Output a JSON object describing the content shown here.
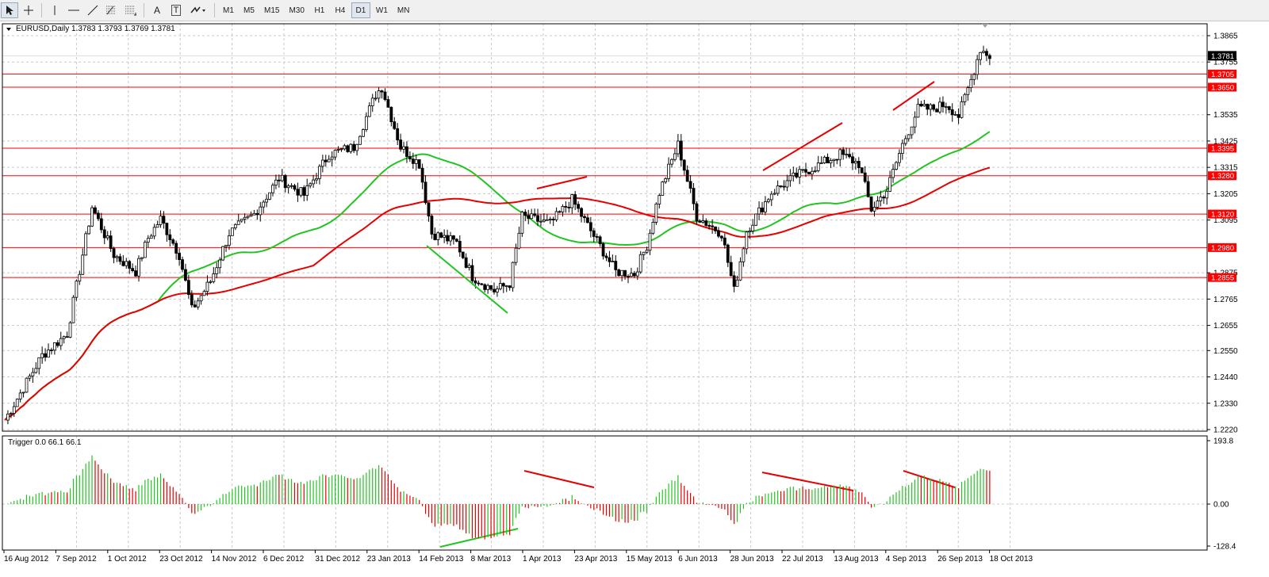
{
  "toolbar": {
    "tools": [
      {
        "name": "cursor-tool-icon",
        "active": true
      },
      {
        "name": "crosshair-tool-icon",
        "active": false
      },
      {
        "name": "vertical-line-tool-icon",
        "active": false
      },
      {
        "name": "horizontal-line-tool-icon",
        "active": false
      },
      {
        "name": "trendline-tool-icon",
        "active": false
      },
      {
        "name": "fibonacci-tool-icon",
        "active": false
      },
      {
        "name": "fibonacci-fan-tool-icon",
        "active": false
      },
      {
        "name": "text-tool-icon",
        "label": "A"
      },
      {
        "name": "text-label-tool-icon",
        "label": "T"
      },
      {
        "name": "arrows-tool-icon",
        "active": false
      }
    ],
    "timeframes": [
      "M1",
      "M5",
      "M15",
      "M30",
      "H1",
      "H4",
      "D1",
      "W1",
      "MN"
    ],
    "active_timeframe": "D1"
  },
  "main_chart": {
    "title": "EURUSD,Daily  1.3783 1.3793 1.3769 1.3781",
    "price_ticks": [
      "1.3865",
      "1.3755",
      "1.3535",
      "1.3425",
      "1.3315",
      "1.3205",
      "1.3095",
      "1.2875",
      "1.2765",
      "1.2655",
      "1.2550",
      "1.2440",
      "1.2330",
      "1.2220"
    ],
    "current_price": "1.3781",
    "levels": [
      "1.3705",
      "1.3650",
      "1.3395",
      "1.3280",
      "1.3120",
      "1.2980",
      "1.2855"
    ],
    "colors": {
      "level": "#ff0000",
      "ma_fast": "#22c422",
      "ma_slow": "#e60000",
      "bull": "#ffffff",
      "bear": "#000000"
    }
  },
  "indicator": {
    "title": "Trigger 0.0 66.1 66.1",
    "ticks": [
      "193.8",
      "0.00",
      "-128.4"
    ],
    "colors": {
      "positive": "#22c422",
      "negative": "#e60000"
    }
  },
  "time_axis": [
    "16 Aug 2012",
    "7 Sep 2012",
    "1 Oct 2012",
    "23 Oct 2012",
    "14 Nov 2012",
    "6 Dec 2012",
    "31 Dec 2012",
    "23 Jan 2013",
    "14 Feb 2013",
    "8 Mar 2013",
    "1 Apr 2013",
    "23 Apr 2013",
    "15 May 2013",
    "6 Jun 2013",
    "28 Jun 2013",
    "22 Jul 2013",
    "13 Aug 2013",
    "4 Sep 2013",
    "26 Sep 2013",
    "18 Oct 2013"
  ]
}
